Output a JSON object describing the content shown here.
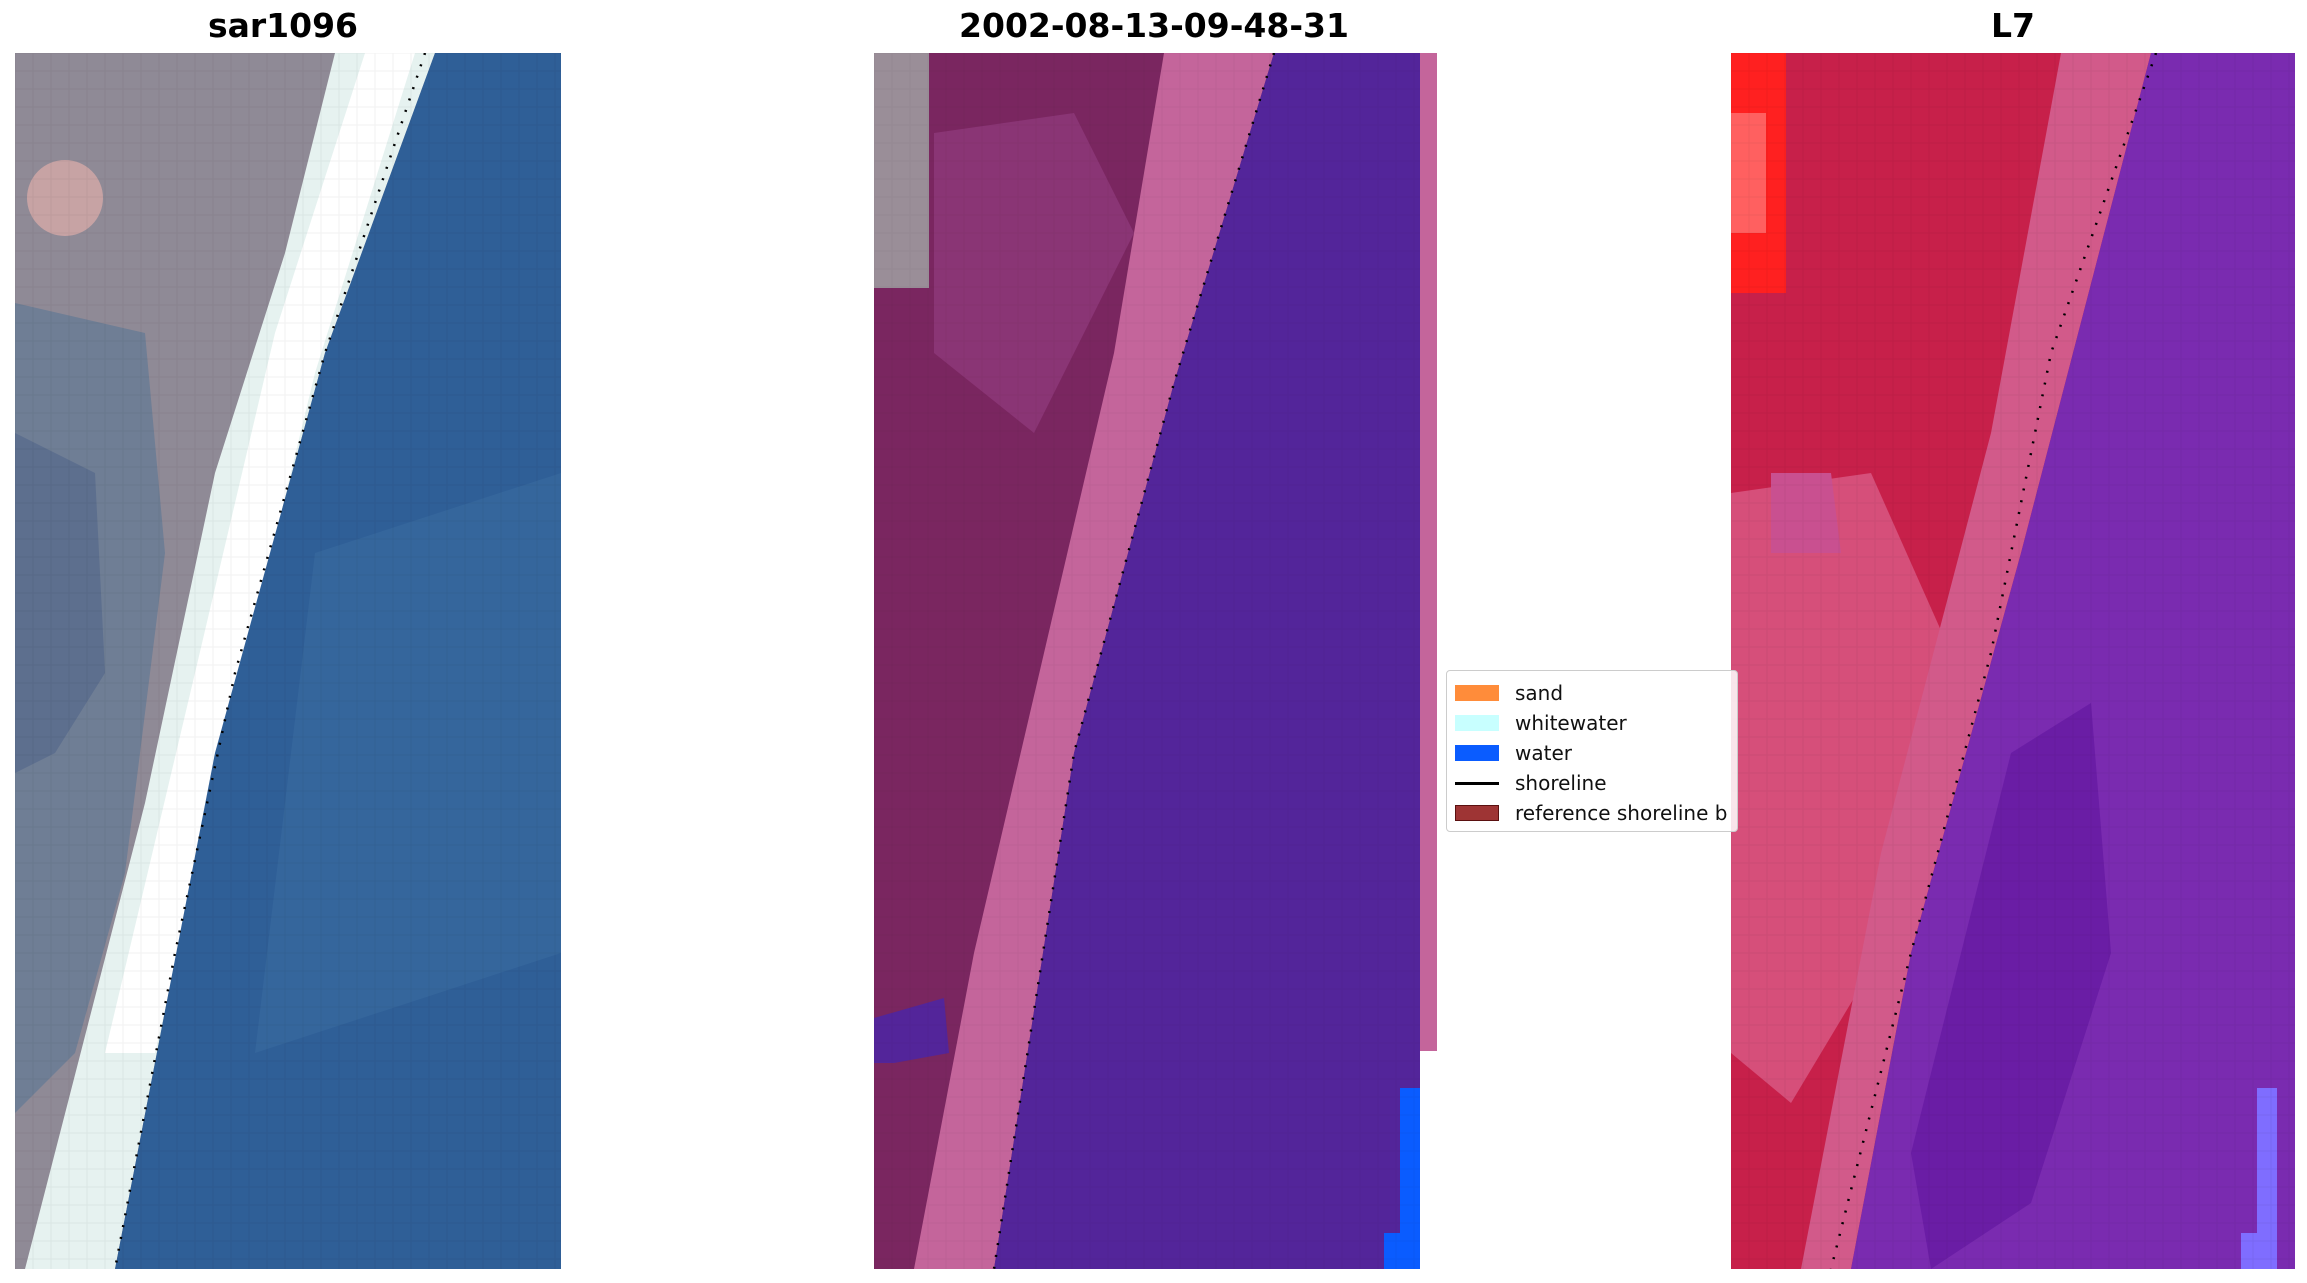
{
  "figure": {
    "panels": [
      {
        "title": "sar1096",
        "kind": "rgb"
      },
      {
        "title": "2002-08-13-09-48-31",
        "kind": "classified"
      },
      {
        "title": "L7",
        "kind": "false-color"
      }
    ],
    "legend": {
      "items": [
        {
          "label": "sand",
          "type": "patch",
          "color": "#ff8c3a"
        },
        {
          "label": "whitewater",
          "type": "patch",
          "color": "#c8ffff"
        },
        {
          "label": "water",
          "type": "patch",
          "color": "#0a5cff"
        },
        {
          "label": "shoreline",
          "type": "line",
          "color": "#000000"
        },
        {
          "label": "reference shoreline b",
          "type": "patch",
          "color": "#9e3434",
          "edge": "#5a1010"
        }
      ]
    },
    "colors": {
      "land_gray": "#8f8a96",
      "sand_white": "#e6f2f0",
      "water_blue": "#2f5f97",
      "land_maroon": "#7a2660",
      "beach_pink": "#c4659b",
      "water_purple": "#53259a",
      "classified_water": "#0a5cff",
      "land_red": "#c7204a",
      "land_bright_red": "#ff2020",
      "water_violet": "#7a2bb0",
      "water_light_violet": "#7f6dff"
    }
  }
}
